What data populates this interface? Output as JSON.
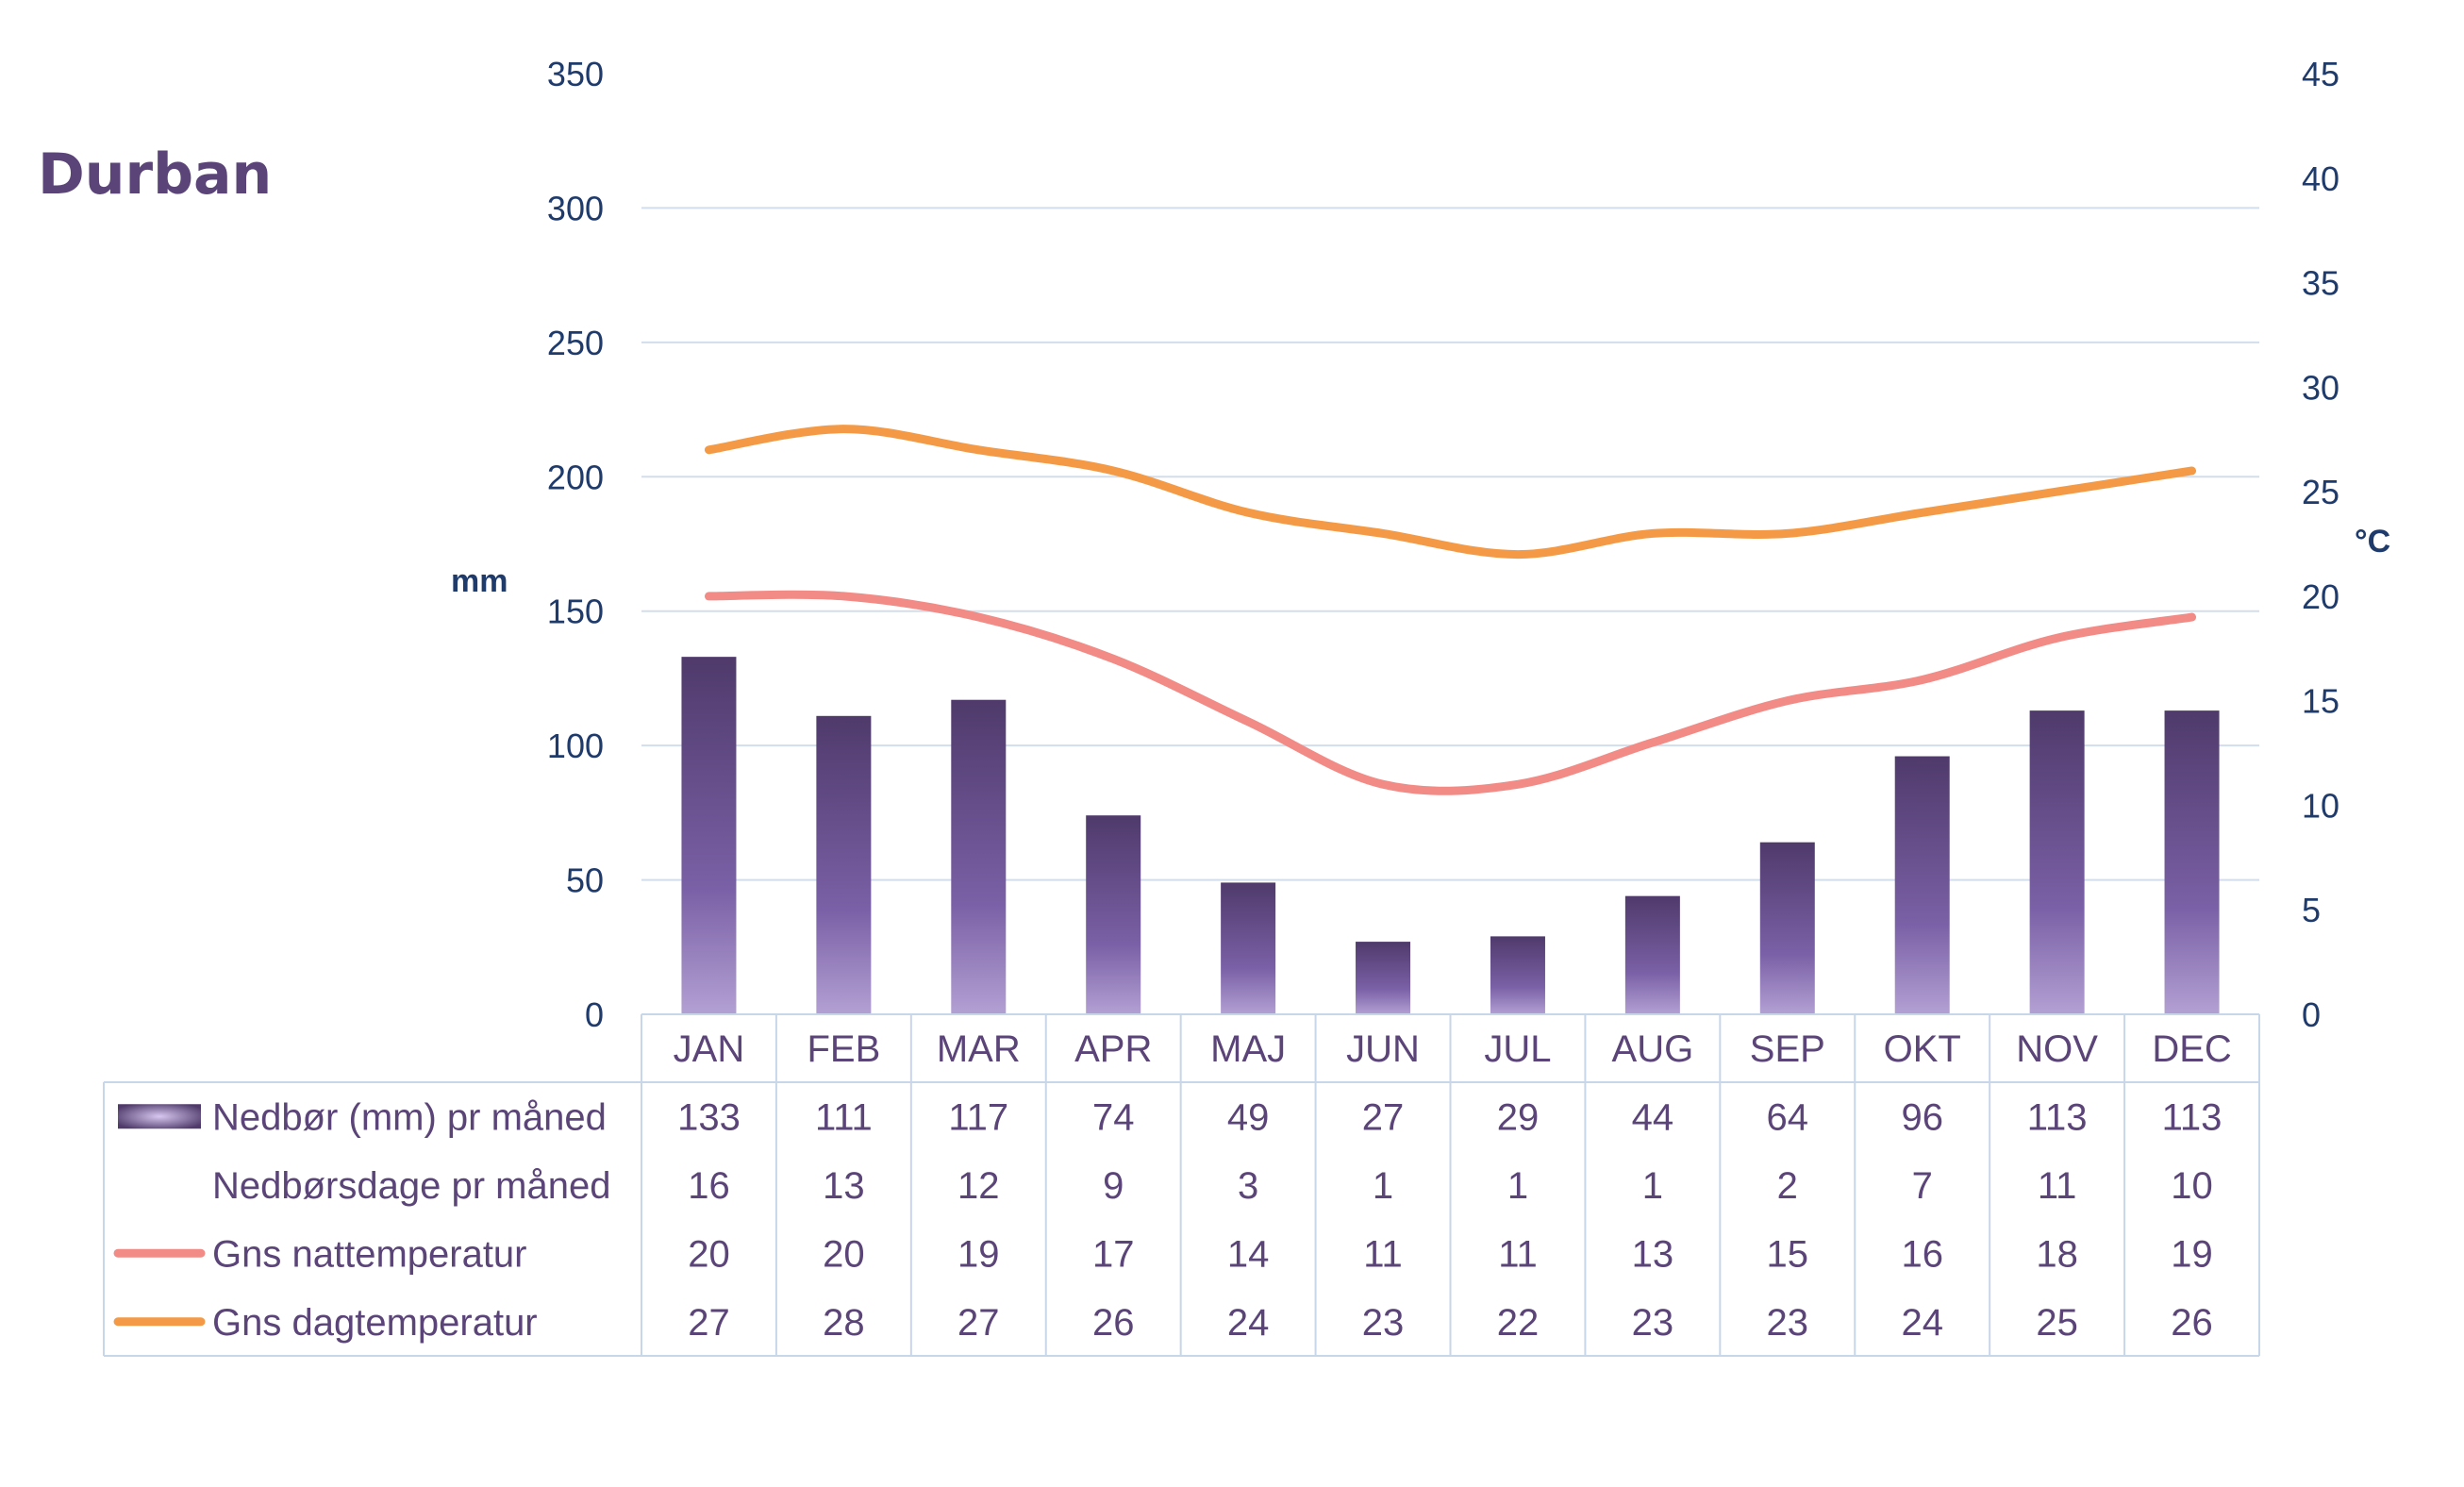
{
  "chart_data": {
    "type": "bar",
    "title": "Durban",
    "categories": [
      "JAN",
      "FEB",
      "MAR",
      "APR",
      "MAJ",
      "JUN",
      "JUL",
      "AUG",
      "SEP",
      "OKT",
      "NOV",
      "DEC"
    ],
    "y_left": {
      "label": "mm",
      "range": [
        0,
        350
      ],
      "ticks": [
        0,
        50,
        100,
        150,
        200,
        250,
        300,
        350
      ]
    },
    "y_right": {
      "label": "°C",
      "range": [
        0,
        45
      ],
      "ticks": [
        0,
        5,
        10,
        15,
        20,
        25,
        30,
        35,
        40,
        45
      ]
    },
    "grid": true,
    "series": [
      {
        "name": "Nedbør (mm) pr måned",
        "type": "bar",
        "axis": "left",
        "values": [
          133,
          111,
          117,
          74,
          49,
          27,
          29,
          44,
          64,
          96,
          113,
          113
        ]
      },
      {
        "name": "Nedbørsdage pr måned",
        "type": "table-only",
        "values": [
          16,
          13,
          12,
          9,
          3,
          1,
          1,
          1,
          2,
          7,
          11,
          10
        ]
      },
      {
        "name": "Gns nattemperatur",
        "type": "line",
        "axis": "right",
        "color": "#f28a86",
        "values": [
          20,
          20,
          19,
          17,
          14,
          11,
          11,
          13,
          15,
          16,
          18,
          19
        ]
      },
      {
        "name": "Gns dagtemperatur",
        "type": "line",
        "axis": "right",
        "color": "#f49a46",
        "values": [
          27,
          28,
          27,
          26,
          24,
          23,
          22,
          23,
          23,
          24,
          25,
          26
        ]
      }
    ],
    "colors": {
      "bar_dark": "#4f3a6b",
      "bar_light": "#a48ec8",
      "text": "#5b4478",
      "axis_text": "#1f3b6b",
      "grid": "#d3deec"
    }
  }
}
